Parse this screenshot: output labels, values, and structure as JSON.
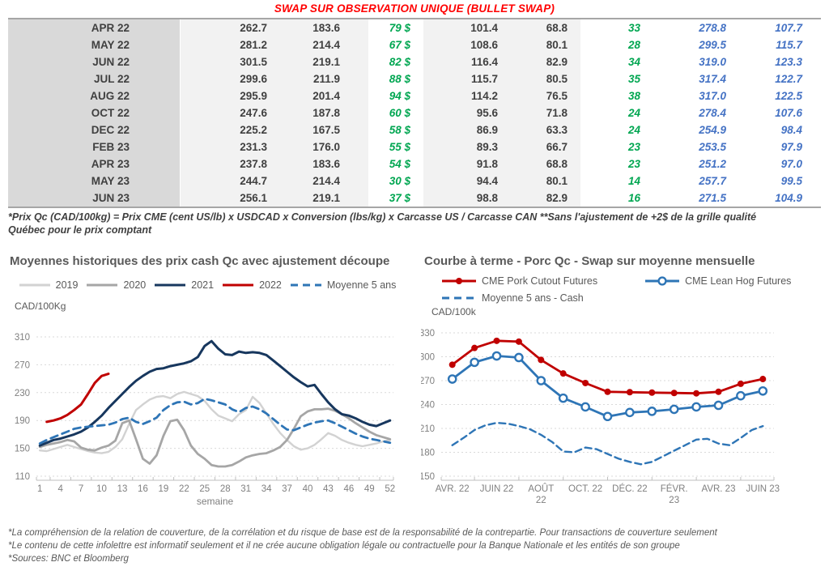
{
  "page_title": "SWAP SUR OBSERVATION UNIQUE (BULLET SWAP)",
  "table": {
    "col_styles": [
      "month",
      "dark",
      "dark",
      "green",
      "dark",
      "dark",
      "green",
      "blue",
      "blue"
    ],
    "colors": {
      "dark": "#404040",
      "green": "#00a651",
      "blue": "#4472c4"
    },
    "rows": [
      [
        "APR 22",
        "262.7",
        "183.6",
        "79 $",
        "101.4",
        "68.8",
        "33",
        "278.8",
        "107.7"
      ],
      [
        "MAY 22",
        "281.2",
        "214.4",
        "67 $",
        "108.6",
        "80.1",
        "28",
        "299.5",
        "115.7"
      ],
      [
        "JUN 22",
        "301.5",
        "219.1",
        "82 $",
        "116.4",
        "82.9",
        "34",
        "319.0",
        "123.3"
      ],
      [
        "JUL 22",
        "299.6",
        "211.9",
        "88 $",
        "115.7",
        "80.5",
        "35",
        "317.4",
        "122.7"
      ],
      [
        "AUG 22",
        "295.9",
        "201.4",
        "94 $",
        "114.2",
        "76.5",
        "38",
        "317.0",
        "122.5"
      ],
      [
        "OCT 22",
        "247.6",
        "187.8",
        "60 $",
        "95.6",
        "71.8",
        "24",
        "278.4",
        "107.6"
      ],
      [
        "DEC 22",
        "225.2",
        "167.5",
        "58 $",
        "86.9",
        "63.3",
        "24",
        "254.9",
        "98.4"
      ],
      [
        "FEB 23",
        "231.3",
        "176.0",
        "55 $",
        "89.3",
        "66.7",
        "23",
        "253.5",
        "97.9"
      ],
      [
        "APR 23",
        "237.8",
        "183.6",
        "54 $",
        "91.8",
        "68.8",
        "23",
        "251.2",
        "97.0"
      ],
      [
        "MAY 23",
        "244.7",
        "214.4",
        "30 $",
        "94.4",
        "80.1",
        "14",
        "257.7",
        "99.5"
      ],
      [
        "JUN 23",
        "256.1",
        "219.1",
        "37 $",
        "98.8",
        "82.9",
        "16",
        "271.5",
        "104.9"
      ]
    ]
  },
  "table_footnote_line1": "*Prix Qc (CAD/100kg) = Prix CME (cent US/lb) x USDCAD x Conversion (lbs/kg) x Carcasse US / Carcasse CAN **Sans l'ajustement de +2$ de la grille qualité",
  "table_footnote_line2": "Québec pour le prix comptant",
  "chart_data": [
    {
      "id": "left",
      "type": "line",
      "title": "Moyennes historiques des prix cash Qc avec ajustement découpe",
      "ylabel": "CAD/100Kg",
      "xlabel": "semaine",
      "ylim": [
        110,
        310
      ],
      "yticks": [
        110,
        150,
        190,
        230,
        270,
        310
      ],
      "xlim": [
        0.5,
        52.5
      ],
      "grid": "dashed-horizontal",
      "legend_position": "top-center",
      "x_base": [
        1,
        2,
        3,
        4,
        5,
        6,
        7,
        8,
        9,
        10,
        11,
        12,
        13,
        14,
        15,
        16,
        17,
        18,
        19,
        20,
        21,
        22,
        23,
        24,
        25,
        26,
        27,
        28,
        29,
        30,
        31,
        32,
        33,
        34,
        35,
        36,
        37,
        38,
        39,
        40,
        41,
        42,
        43,
        44,
        45,
        46,
        47,
        48,
        49,
        50,
        51,
        52
      ],
      "xticks": [
        {
          "pos": 1,
          "label": "1"
        },
        {
          "pos": 4,
          "label": "4"
        },
        {
          "pos": 7,
          "label": "7"
        },
        {
          "pos": 10,
          "label": "10"
        },
        {
          "pos": 13,
          "label": "13"
        },
        {
          "pos": 16,
          "label": "16"
        },
        {
          "pos": 19,
          "label": "19"
        },
        {
          "pos": 22,
          "label": "22"
        },
        {
          "pos": 25,
          "label": "25"
        },
        {
          "pos": 28,
          "label": "28"
        },
        {
          "pos": 31,
          "label": "31"
        },
        {
          "pos": 34,
          "label": "34"
        },
        {
          "pos": 37,
          "label": "37"
        },
        {
          "pos": 40,
          "label": "40"
        },
        {
          "pos": 43,
          "label": "43"
        },
        {
          "pos": 46,
          "label": "46"
        },
        {
          "pos": 49,
          "label": "49"
        },
        {
          "pos": 52,
          "label": "52"
        }
      ],
      "xtick_marks": [
        0.5,
        2.5,
        5.5,
        8.5,
        11.5,
        14.5,
        17.5,
        20.5,
        23.5,
        26.5,
        29.5,
        32.5,
        35.5,
        38.5,
        41.5,
        44.5,
        47.5,
        50.5,
        52.5
      ],
      "series": [
        {
          "name": "2019",
          "color": "#d2d2d2",
          "width": 2.4,
          "values": [
            147,
            146,
            149,
            152,
            155,
            152,
            149,
            146,
            144,
            143,
            145,
            152,
            163,
            185,
            205,
            213,
            220,
            224,
            225,
            222,
            228,
            231,
            228,
            225,
            218,
            206,
            197,
            193,
            189,
            199,
            205,
            224,
            215,
            200,
            185,
            172,
            162,
            153,
            148,
            150,
            155,
            163,
            172,
            168,
            162,
            158,
            155,
            153,
            155,
            157,
            160,
            162
          ]
        },
        {
          "name": "2020",
          "color": "#a6a6a6",
          "width": 2.8,
          "values": [
            152,
            155,
            157,
            159,
            162,
            160,
            151,
            148,
            147,
            151,
            154,
            161,
            186,
            190,
            163,
            135,
            128,
            140,
            168,
            189,
            191,
            176,
            154,
            142,
            135,
            126,
            124,
            124,
            126,
            131,
            137,
            140,
            142,
            143,
            147,
            152,
            162,
            178,
            196,
            203,
            206,
            206,
            207,
            204,
            199,
            193,
            186,
            180,
            174,
            169,
            166,
            163
          ]
        },
        {
          "name": "2021",
          "color": "#17375e",
          "width": 3,
          "values": [
            154,
            158,
            162,
            164,
            167,
            170,
            174,
            180,
            188,
            197,
            208,
            218,
            228,
            238,
            247,
            254,
            260,
            264,
            265,
            268,
            270,
            272,
            275,
            281,
            297,
            304,
            293,
            285,
            284,
            289,
            287,
            288,
            287,
            284,
            276,
            268,
            260,
            252,
            245,
            239,
            241,
            228,
            216,
            206,
            199,
            197,
            193,
            188,
            184,
            182,
            186,
            190
          ]
        },
        {
          "name": "2022",
          "color": "#c00000",
          "width": 3,
          "x": [
            2,
            3,
            4,
            5,
            6,
            7,
            8,
            9,
            10,
            11
          ],
          "values": [
            188,
            190,
            193,
            198,
            205,
            213,
            228,
            244,
            254,
            257
          ]
        },
        {
          "name": "Moyenne 5 ans",
          "color": "#2e75b6",
          "width": 2.8,
          "dash": "9 6",
          "values": [
            157,
            162,
            166,
            170,
            174,
            178,
            180,
            181,
            182,
            183,
            184,
            187,
            192,
            194,
            188,
            185,
            189,
            194,
            205,
            212,
            216,
            217,
            213,
            215,
            221,
            219,
            216,
            213,
            206,
            202,
            208,
            210,
            206,
            200,
            192,
            184,
            177,
            176,
            180,
            184,
            187,
            189,
            190,
            186,
            181,
            176,
            171,
            167,
            164,
            162,
            160,
            158
          ]
        }
      ]
    },
    {
      "id": "right",
      "type": "line",
      "title": "Courbe à terme - Porc Qc - Swap sur moyenne mensuelle",
      "ylabel": "CAD/100k",
      "xlabel": "",
      "ylim": [
        150,
        330
      ],
      "yticks": [
        150,
        180,
        210,
        240,
        270,
        300,
        330
      ],
      "xlim": [
        -0.5,
        14.5
      ],
      "grid": "dashed-horizontal",
      "legend_position": "top-left",
      "x_base": [
        0,
        1,
        2,
        3,
        4,
        5,
        6,
        7,
        8,
        9,
        10,
        11,
        12,
        13,
        14
      ],
      "xticks": [
        {
          "pos": 0,
          "label": "AVR. 22"
        },
        {
          "pos": 2,
          "label": "JUIN 22"
        },
        {
          "pos": 4,
          "label": "AOÛT\n22"
        },
        {
          "pos": 6,
          "label": "OCT. 22"
        },
        {
          "pos": 8,
          "label": "DÉC. 22"
        },
        {
          "pos": 10,
          "label": "FÉVR.\n23"
        },
        {
          "pos": 12,
          "label": "AVR. 23"
        },
        {
          "pos": 14,
          "label": "JUIN 23"
        }
      ],
      "xtick_marks": [
        -0.5,
        1,
        3,
        5,
        7,
        9,
        11,
        13,
        14.5
      ],
      "series": [
        {
          "name": "CME Pork Cutout Futures",
          "color": "#c00000",
          "width": 2.8,
          "marker": "filled-circle",
          "values": [
            290,
            311,
            320,
            319,
            296,
            279,
            267,
            256,
            255.5,
            255,
            254.5,
            254,
            256,
            266,
            272
          ]
        },
        {
          "name": "CME Lean Hog Futures",
          "color": "#2e75b6",
          "width": 2.8,
          "marker": "open-circle",
          "values": [
            272,
            293,
            301,
            299,
            270,
            248,
            237,
            225,
            230,
            231.5,
            234,
            237,
            239,
            251,
            257
          ]
        },
        {
          "name": "Moyenne 5 ans - Cash",
          "color": "#2e75b6",
          "width": 2.4,
          "dash": "8 5",
          "x": [
            0,
            0.5,
            1,
            1.5,
            2,
            2.5,
            3,
            3.5,
            4,
            4.5,
            5,
            5.5,
            6,
            6.5,
            7,
            7.5,
            8,
            8.5,
            9,
            9.5,
            10,
            10.5,
            11,
            11.5,
            12,
            12.5,
            13,
            13.5,
            14
          ],
          "values": [
            189,
            198,
            208,
            214,
            217,
            216,
            213,
            209,
            202,
            193,
            181,
            180,
            186,
            184,
            178,
            172,
            168,
            165,
            168,
            175,
            182,
            189,
            196,
            197,
            191,
            189,
            198,
            208,
            213
          ]
        }
      ]
    }
  ],
  "footnotes": [
    "*La compréhension de la relation de couverture, de la corrélation et du risque de base est de la responsabilité de la contrepartie. Pour transactions de couverture seulement",
    "*Le contenu de cette infolettre est informatif seulement et il ne crée aucune obligation légale ou contractuelle pour la Banque Nationale et les entités de son groupe",
    "*Sources: BNC et Bloomberg"
  ]
}
